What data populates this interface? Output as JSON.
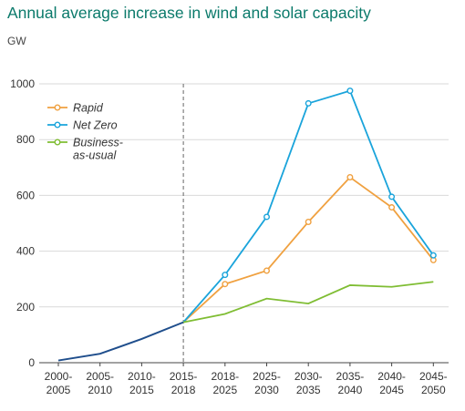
{
  "chart_data": {
    "type": "line",
    "title": "Annual average increase in wind and solar capacity",
    "ylabel": "GW",
    "xlabel": "",
    "ylim": [
      0,
      1000
    ],
    "yticks": [
      0,
      200,
      400,
      600,
      800,
      1000
    ],
    "categories": [
      "2000-\n2005",
      "2005-\n2010",
      "2010-\n2015",
      "2015-\n2018",
      "2018-\n2025",
      "2025-\n2030",
      "2030-\n2035",
      "2035-\n2040",
      "2040-\n2045",
      "2045-\n2050"
    ],
    "historical": {
      "color": "#1f4e8c",
      "values": [
        8,
        32,
        85,
        145
      ]
    },
    "divider_after_category": "2015-\n2018",
    "series": [
      {
        "name": "Rapid",
        "color": "#f0a140",
        "values": [
          null,
          null,
          null,
          145,
          282,
          330,
          505,
          665,
          557,
          368
        ]
      },
      {
        "name": "Net Zero",
        "color": "#1aa4db",
        "values": [
          null,
          null,
          null,
          145,
          315,
          523,
          930,
          975,
          595,
          385
        ]
      },
      {
        "name": "Business-\nas-usual",
        "color": "#7fbd33",
        "values": [
          null,
          null,
          null,
          145,
          175,
          230,
          212,
          278,
          272,
          290
        ]
      }
    ],
    "grid": "horizontal",
    "legend_position": "top-left"
  }
}
